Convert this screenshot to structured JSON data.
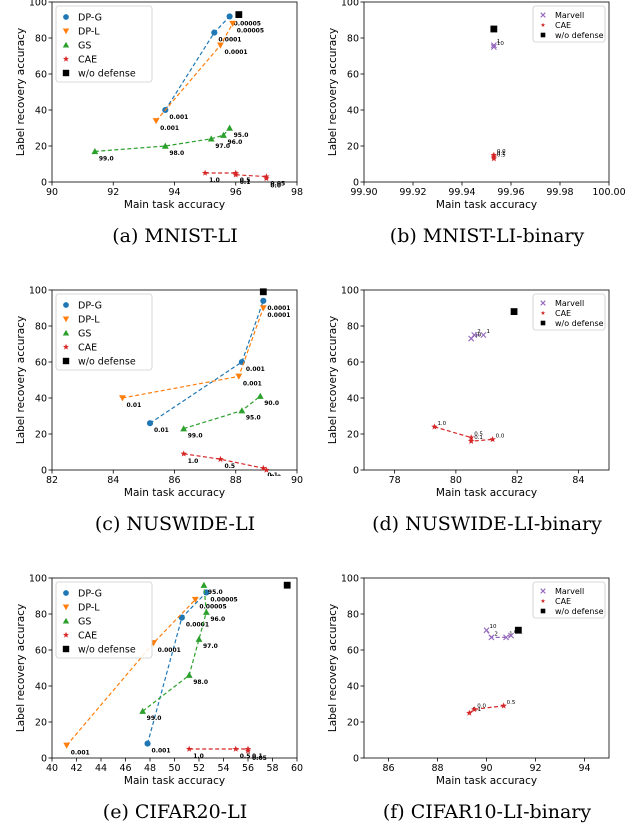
{
  "colors": {
    "DP-G": "#1f77b4",
    "DP-L": "#ff7f0e",
    "GS": "#2ca02c",
    "CAE": "#d62728",
    "w/o defense": "#000000",
    "Marvell": "#9467bd"
  },
  "chart_data": [
    {
      "type": "scatter",
      "caption": "(a) MNIST-LI",
      "xlabel": "Main task accuracy",
      "ylabel": "Label recovery accuracy",
      "xlim": [
        90,
        98
      ],
      "ylim": [
        0,
        100
      ],
      "xticks": [
        "90",
        "92",
        "94",
        "96",
        "98"
      ],
      "yticks": [
        "0",
        "20",
        "40",
        "60",
        "80",
        "100"
      ],
      "legend": "upper left",
      "series": [
        {
          "name": "DP-G",
          "marker": "circle",
          "dashed": true,
          "points": [
            {
              "x": 93.7,
              "y": 40,
              "label": "0.001"
            },
            {
              "x": 95.3,
              "y": 83,
              "label": "0.0001"
            },
            {
              "x": 95.8,
              "y": 92,
              "label": "0.00005"
            }
          ]
        },
        {
          "name": "DP-L",
          "marker": "triangle-down",
          "dashed": true,
          "points": [
            {
              "x": 93.4,
              "y": 34,
              "label": "0.001"
            },
            {
              "x": 95.5,
              "y": 76,
              "label": "0.0001"
            },
            {
              "x": 95.9,
              "y": 88,
              "label": "0.00005"
            }
          ]
        },
        {
          "name": "GS",
          "marker": "triangle-up",
          "dashed": true,
          "points": [
            {
              "x": 91.4,
              "y": 17,
              "label": "99.0"
            },
            {
              "x": 93.7,
              "y": 20,
              "label": "98.0"
            },
            {
              "x": 95.2,
              "y": 24,
              "label": "97.0"
            },
            {
              "x": 95.6,
              "y": 26,
              "label": "96.0"
            },
            {
              "x": 95.8,
              "y": 30,
              "label": "95.0"
            }
          ]
        },
        {
          "name": "CAE",
          "marker": "star",
          "dashed": true,
          "points": [
            {
              "x": 95.0,
              "y": 5,
              "label": "1.0"
            },
            {
              "x": 96.0,
              "y": 5,
              "label": "0.5"
            },
            {
              "x": 96.0,
              "y": 4,
              "label": "0.1"
            },
            {
              "x": 97.0,
              "y": 3,
              "label": "0.05"
            },
            {
              "x": 97.0,
              "y": 2,
              "label": "0.0"
            }
          ]
        },
        {
          "name": "w/o defense",
          "marker": "square",
          "dashed": false,
          "points": [
            {
              "x": 96.1,
              "y": 93,
              "label": ""
            }
          ]
        }
      ]
    },
    {
      "type": "scatter",
      "caption": "(b) MNIST-LI-binary",
      "xlabel": "Main task accuracy",
      "ylabel": "Label recovery accuracy",
      "xlim": [
        99.9,
        100.0
      ],
      "ylim": [
        0,
        100
      ],
      "xticks": [
        "99.90",
        "99.92",
        "99.94",
        "99.96",
        "99.98",
        "100.00"
      ],
      "yticks": [
        "0",
        "20",
        "40",
        "60",
        "80",
        "100"
      ],
      "legend": "upper right",
      "series": [
        {
          "name": "Marvell",
          "marker": "x",
          "dashed": false,
          "points": [
            {
              "x": 99.953,
              "y": 76,
              "label": "1"
            },
            {
              "x": 99.953,
              "y": 75,
              "label": "10"
            }
          ]
        },
        {
          "name": "CAE",
          "marker": "star",
          "dashed": false,
          "points": [
            {
              "x": 99.953,
              "y": 15,
              "label": "0.0"
            },
            {
              "x": 99.953,
              "y": 14,
              "label": "0.1"
            },
            {
              "x": 99.953,
              "y": 13,
              "label": "0.5"
            }
          ]
        },
        {
          "name": "w/o defense",
          "marker": "square",
          "dashed": false,
          "points": [
            {
              "x": 99.953,
              "y": 85,
              "label": ""
            }
          ]
        }
      ]
    },
    {
      "type": "scatter",
      "caption": "(c) NUSWIDE-LI",
      "xlabel": "Main task accuracy",
      "ylabel": "Label recovery accuracy",
      "xlim": [
        82,
        90
      ],
      "ylim": [
        0,
        100
      ],
      "xticks": [
        "82",
        "84",
        "86",
        "88",
        "90"
      ],
      "yticks": [
        "0",
        "20",
        "40",
        "60",
        "80",
        "100"
      ],
      "legend": "upper left",
      "series": [
        {
          "name": "DP-G",
          "marker": "circle",
          "dashed": true,
          "points": [
            {
              "x": 85.2,
              "y": 26,
              "label": "0.01"
            },
            {
              "x": 88.2,
              "y": 60,
              "label": "0.001"
            },
            {
              "x": 88.9,
              "y": 94,
              "label": "0.0001"
            }
          ]
        },
        {
          "name": "DP-L",
          "marker": "triangle-down",
          "dashed": true,
          "points": [
            {
              "x": 84.3,
              "y": 40,
              "label": "0.01"
            },
            {
              "x": 88.1,
              "y": 52,
              "label": "0.001"
            },
            {
              "x": 88.9,
              "y": 90,
              "label": "0.0001"
            }
          ]
        },
        {
          "name": "GS",
          "marker": "triangle-up",
          "dashed": true,
          "points": [
            {
              "x": 86.3,
              "y": 23,
              "label": "99.0"
            },
            {
              "x": 88.2,
              "y": 33,
              "label": "95.0"
            },
            {
              "x": 88.8,
              "y": 41,
              "label": "90.0"
            }
          ]
        },
        {
          "name": "CAE",
          "marker": "star",
          "dashed": true,
          "points": [
            {
              "x": 86.3,
              "y": 9,
              "label": "1.0"
            },
            {
              "x": 87.5,
              "y": 6,
              "label": "0.5"
            },
            {
              "x": 88.9,
              "y": 1,
              "label": "0.1"
            },
            {
              "x": 89.0,
              "y": 0,
              "label": "0.0"
            }
          ]
        },
        {
          "name": "w/o defense",
          "marker": "square",
          "dashed": false,
          "points": [
            {
              "x": 88.9,
              "y": 99,
              "label": ""
            }
          ]
        }
      ]
    },
    {
      "type": "scatter",
      "caption": "(d) NUSWIDE-LI-binary",
      "xlabel": "Main task accuracy",
      "ylabel": "Label recovery accuracy",
      "xlim": [
        77,
        85
      ],
      "ylim": [
        0,
        100
      ],
      "xticks": [
        "78",
        "80",
        "82",
        "84"
      ],
      "yticks": [
        "0",
        "20",
        "40",
        "60",
        "80",
        "100"
      ],
      "legend": "upper right",
      "series": [
        {
          "name": "Marvell",
          "marker": "x",
          "dashed": true,
          "points": [
            {
              "x": 80.5,
              "y": 73,
              "label": "10"
            },
            {
              "x": 80.6,
              "y": 75,
              "label": "2"
            },
            {
              "x": 80.9,
              "y": 75,
              "label": "1"
            }
          ]
        },
        {
          "name": "CAE",
          "marker": "star",
          "dashed": true,
          "points": [
            {
              "x": 79.3,
              "y": 24,
              "label": "1.0"
            },
            {
              "x": 80.5,
              "y": 18,
              "label": "0.5"
            },
            {
              "x": 80.5,
              "y": 16,
              "label": "0.1"
            },
            {
              "x": 81.2,
              "y": 17,
              "label": "0.0"
            }
          ]
        },
        {
          "name": "w/o defense",
          "marker": "square",
          "dashed": false,
          "points": [
            {
              "x": 81.9,
              "y": 88,
              "label": ""
            }
          ]
        }
      ]
    },
    {
      "type": "scatter",
      "caption": "(e) CIFAR20-LI",
      "xlabel": "Main task accuracy",
      "ylabel": "Label recovery accuracy",
      "xlim": [
        40,
        60
      ],
      "ylim": [
        0,
        100
      ],
      "xticks": [
        "40",
        "42",
        "44",
        "46",
        "48",
        "50",
        "52",
        "54",
        "56",
        "58",
        "60"
      ],
      "yticks": [
        "0",
        "20",
        "40",
        "60",
        "80",
        "100"
      ],
      "legend": "upper left",
      "series": [
        {
          "name": "DP-G",
          "marker": "circle",
          "dashed": true,
          "points": [
            {
              "x": 47.8,
              "y": 8,
              "label": "0.001"
            },
            {
              "x": 50.6,
              "y": 78,
              "label": "0.0001"
            },
            {
              "x": 52.6,
              "y": 92,
              "label": "0.00005"
            }
          ]
        },
        {
          "name": "DP-L",
          "marker": "triangle-down",
          "dashed": true,
          "points": [
            {
              "x": 41.2,
              "y": 7,
              "label": "0.001"
            },
            {
              "x": 48.3,
              "y": 64,
              "label": "0.0001"
            },
            {
              "x": 51.7,
              "y": 88,
              "label": "0.00005"
            }
          ]
        },
        {
          "name": "GS",
          "marker": "triangle-up",
          "dashed": true,
          "points": [
            {
              "x": 47.4,
              "y": 26,
              "label": "99.0"
            },
            {
              "x": 51.2,
              "y": 46,
              "label": "98.0"
            },
            {
              "x": 52.0,
              "y": 66,
              "label": "97.0"
            },
            {
              "x": 52.6,
              "y": 81,
              "label": "96.0"
            },
            {
              "x": 52.4,
              "y": 96,
              "label": "95.0"
            }
          ]
        },
        {
          "name": "CAE",
          "marker": "star",
          "dashed": true,
          "points": [
            {
              "x": 51.2,
              "y": 5,
              "label": "1.0"
            },
            {
              "x": 55.0,
              "y": 5,
              "label": "0.5"
            },
            {
              "x": 56.0,
              "y": 5,
              "label": "0.1"
            },
            {
              "x": 56.0,
              "y": 4,
              "label": "0.05"
            }
          ]
        },
        {
          "name": "w/o defense",
          "marker": "square",
          "dashed": false,
          "points": [
            {
              "x": 59.2,
              "y": 96,
              "label": ""
            }
          ]
        }
      ]
    },
    {
      "type": "scatter",
      "caption": "(f) CIFAR10-LI-binary",
      "xlabel": "Main task accuracy",
      "ylabel": "Label recovery accuracy",
      "xlim": [
        85,
        95
      ],
      "ylim": [
        0,
        100
      ],
      "xticks": [
        "86",
        "88",
        "90",
        "92",
        "94"
      ],
      "yticks": [
        "0",
        "20",
        "40",
        "60",
        "80",
        "100"
      ],
      "legend": "upper right",
      "series": [
        {
          "name": "Marvell",
          "marker": "x",
          "dashed": true,
          "points": [
            {
              "x": 90.0,
              "y": 71,
              "label": "10"
            },
            {
              "x": 90.2,
              "y": 67,
              "label": "2"
            },
            {
              "x": 90.8,
              "y": 67,
              "label": "1"
            },
            {
              "x": 91.0,
              "y": 68,
              "label": "0.1"
            }
          ]
        },
        {
          "name": "CAE",
          "marker": "star",
          "dashed": true,
          "points": [
            {
              "x": 89.3,
              "y": 25,
              "label": "0.1"
            },
            {
              "x": 89.5,
              "y": 27,
              "label": "0.0"
            },
            {
              "x": 90.7,
              "y": 29,
              "label": "0.5"
            }
          ]
        },
        {
          "name": "w/o defense",
          "marker": "square",
          "dashed": false,
          "points": [
            {
              "x": 91.3,
              "y": 71,
              "label": ""
            }
          ]
        }
      ]
    }
  ]
}
